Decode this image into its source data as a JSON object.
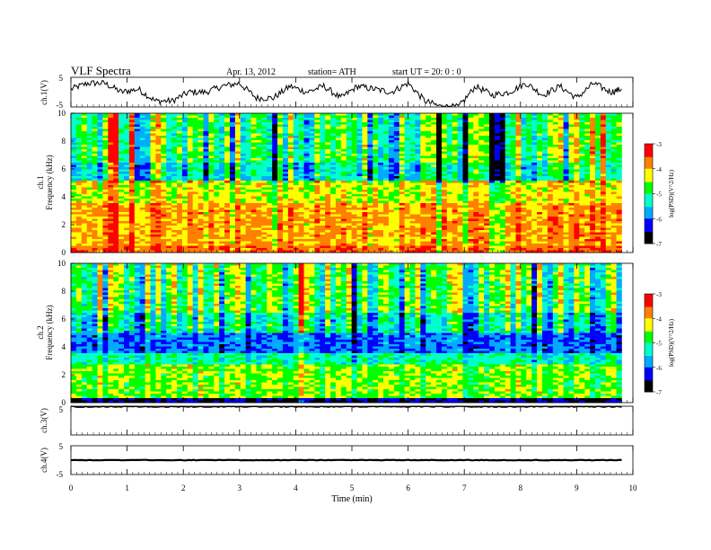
{
  "header": {
    "title": "VLF  Spectra",
    "date": "Apr. 13, 2012",
    "station": "station= ATH",
    "start": "start  UT  =    20: 0  : 0"
  },
  "chart_data": [
    {
      "panel": "ch1-waveform",
      "type": "line",
      "ylabel": "ch.1(V)",
      "ylim": [
        -5,
        5
      ],
      "yticks": [
        "5",
        "-5"
      ],
      "x": [
        0,
        0.3,
        0.6,
        0.9,
        1.2,
        1.5,
        1.8,
        2.1,
        2.4,
        2.7,
        3.0,
        3.3,
        3.6,
        3.9,
        4.2,
        4.5,
        4.8,
        5.1,
        5.4,
        5.7,
        6.0,
        6.3,
        6.6,
        6.9,
        7.2,
        7.5,
        7.8,
        8.1,
        8.4,
        8.7,
        9.0,
        9.3,
        9.6,
        9.8
      ],
      "y": [
        1,
        3,
        3,
        0,
        1,
        -3,
        -3,
        0,
        0,
        2,
        3,
        -2,
        -2,
        2,
        0,
        2,
        -2,
        2,
        1,
        0,
        3,
        -3,
        -5,
        -5,
        2,
        -1,
        0,
        3,
        -1,
        2,
        -2,
        3,
        0,
        1
      ]
    },
    {
      "panel": "ch1-spectrogram",
      "type": "heatmap",
      "ylabel": "Frequency (kHz)",
      "channel_label": "ch.1",
      "ylim": [
        0,
        10
      ],
      "yticks": [
        "0",
        "2",
        "4",
        "6",
        "8",
        "10"
      ],
      "colorbar": {
        "label": "log(PSD)(V^2/Hz)",
        "range": [
          -7,
          -3
        ],
        "ticks": [
          "-3",
          "-4",
          "-5",
          "-6",
          "-7"
        ]
      }
    },
    {
      "panel": "ch2-spectrogram",
      "type": "heatmap",
      "ylabel": "Frequency (kHz)",
      "channel_label": "ch.2",
      "ylim": [
        0,
        10
      ],
      "yticks": [
        "0",
        "2",
        "4",
        "6",
        "8",
        "10"
      ],
      "colorbar": {
        "label": "log(PSD)(V^2/Hz)",
        "range": [
          -7,
          -3
        ],
        "ticks": [
          "-3",
          "-4",
          "-5",
          "-6",
          "-7"
        ]
      }
    },
    {
      "panel": "ch3-waveform",
      "type": "line",
      "ylabel": "ch.3(V)",
      "ylim": [
        -5,
        5
      ],
      "yticks": [
        "5"
      ],
      "y_constant": 4.8
    },
    {
      "panel": "ch4-waveform",
      "type": "line",
      "ylabel": "ch.4(V)",
      "ylim": [
        -5,
        5
      ],
      "yticks": [
        "5",
        "-5"
      ],
      "y_constant": 0
    }
  ],
  "xaxis": {
    "label": "Time  (min)",
    "ticks": [
      "0",
      "1",
      "2",
      "3",
      "4",
      "5",
      "6",
      "7",
      "8",
      "9",
      "10"
    ],
    "xlim": [
      0,
      10
    ],
    "data_end": 9.8
  },
  "colormap": [
    "#000000",
    "#0000ff",
    "#00aaff",
    "#00ffcc",
    "#00ff00",
    "#ffff00",
    "#ff8000",
    "#ff0000",
    "#ffffff"
  ]
}
